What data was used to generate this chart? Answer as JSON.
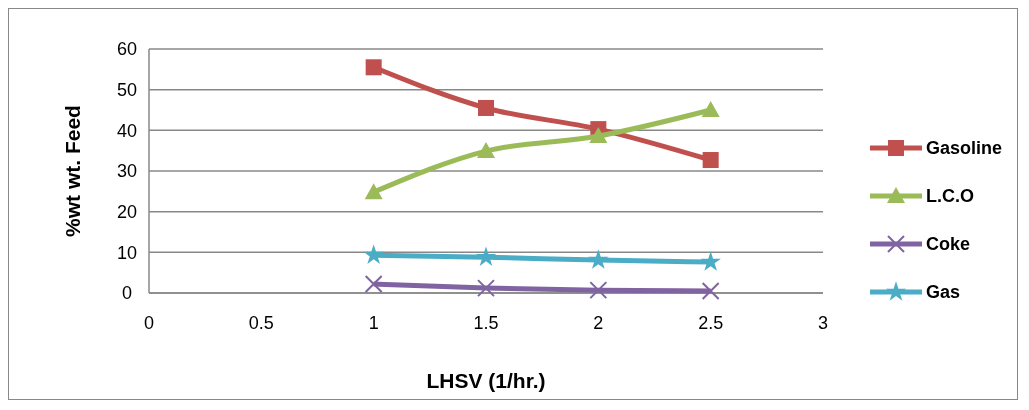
{
  "chart_data": {
    "type": "line",
    "xlabel": "LHSV (1/hr.)",
    "ylabel": "%wt wt. Feed",
    "x": [
      1,
      1.5,
      2,
      2.5
    ],
    "xlim": [
      0,
      3
    ],
    "xticks": [
      0,
      0.5,
      1,
      1.5,
      2,
      2.5,
      3
    ],
    "ylim": [
      0,
      60
    ],
    "yticks": [
      0,
      10,
      20,
      30,
      40,
      50,
      60
    ],
    "grid": "y",
    "legend": "right",
    "series": [
      {
        "name": "Gasoline",
        "color": "#c0504d",
        "marker": "square",
        "values": [
          55.5,
          45.5,
          40.3,
          32.7
        ]
      },
      {
        "name": "L.C.O",
        "color": "#9bbb59",
        "marker": "triangle",
        "values": [
          24.8,
          34.9,
          38.6,
          45
        ]
      },
      {
        "name": "Coke",
        "color": "#8064a2",
        "marker": "cross",
        "values": [
          2.2,
          1.2,
          0.7,
          0.5
        ]
      },
      {
        "name": "Gas",
        "color": "#4bacc6",
        "marker": "star",
        "values": [
          9.3,
          8.8,
          8.1,
          7.6
        ]
      }
    ]
  }
}
